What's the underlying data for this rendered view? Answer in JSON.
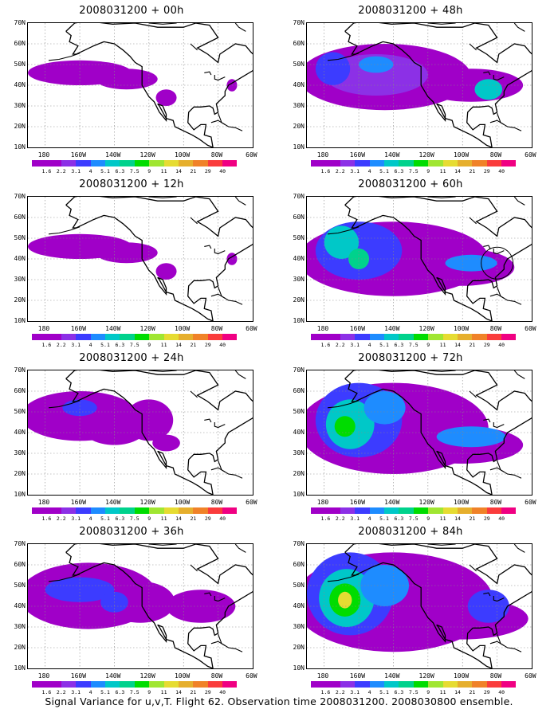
{
  "footer": "Signal Variance for u,v,T. Flight 62. Observation time 2008031200. 2008030800 ensemble.",
  "latitude_labels": [
    "70N",
    "60N",
    "50N",
    "40N",
    "30N",
    "20N",
    "10N"
  ],
  "longitude_labels": [
    "180",
    "160W",
    "140W",
    "120W",
    "100W",
    "80W",
    "60W"
  ],
  "colorbar": {
    "labels": [
      "1.6",
      "2.2",
      "3.1",
      "4",
      "5.1",
      "6.3",
      "7.5",
      "9",
      "11",
      "14",
      "21",
      "29",
      "40"
    ],
    "colors": [
      "#a000c8",
      "#8c30e6",
      "#3c3cff",
      "#1e8cff",
      "#00c8c8",
      "#00d28c",
      "#00dc00",
      "#a0e632",
      "#e6dc32",
      "#e6af2d",
      "#f08228",
      "#fa3c3c",
      "#f00082"
    ]
  },
  "panels": [
    {
      "title": "2008031200 + 00h",
      "level": 1,
      "circle": false
    },
    {
      "title": "2008031200 + 48h",
      "level": 4,
      "circle": false
    },
    {
      "title": "2008031200 + 12h",
      "level": 1,
      "circle": false
    },
    {
      "title": "2008031200 + 60h",
      "level": 5,
      "circle": true
    },
    {
      "title": "2008031200 + 24h",
      "level": 2,
      "circle": false
    },
    {
      "title": "2008031200 + 72h",
      "level": 6,
      "circle": false
    },
    {
      "title": "2008031200 + 36h",
      "level": 3,
      "circle": false
    },
    {
      "title": "2008031200 + 84h",
      "level": 7,
      "circle": false
    }
  ]
}
